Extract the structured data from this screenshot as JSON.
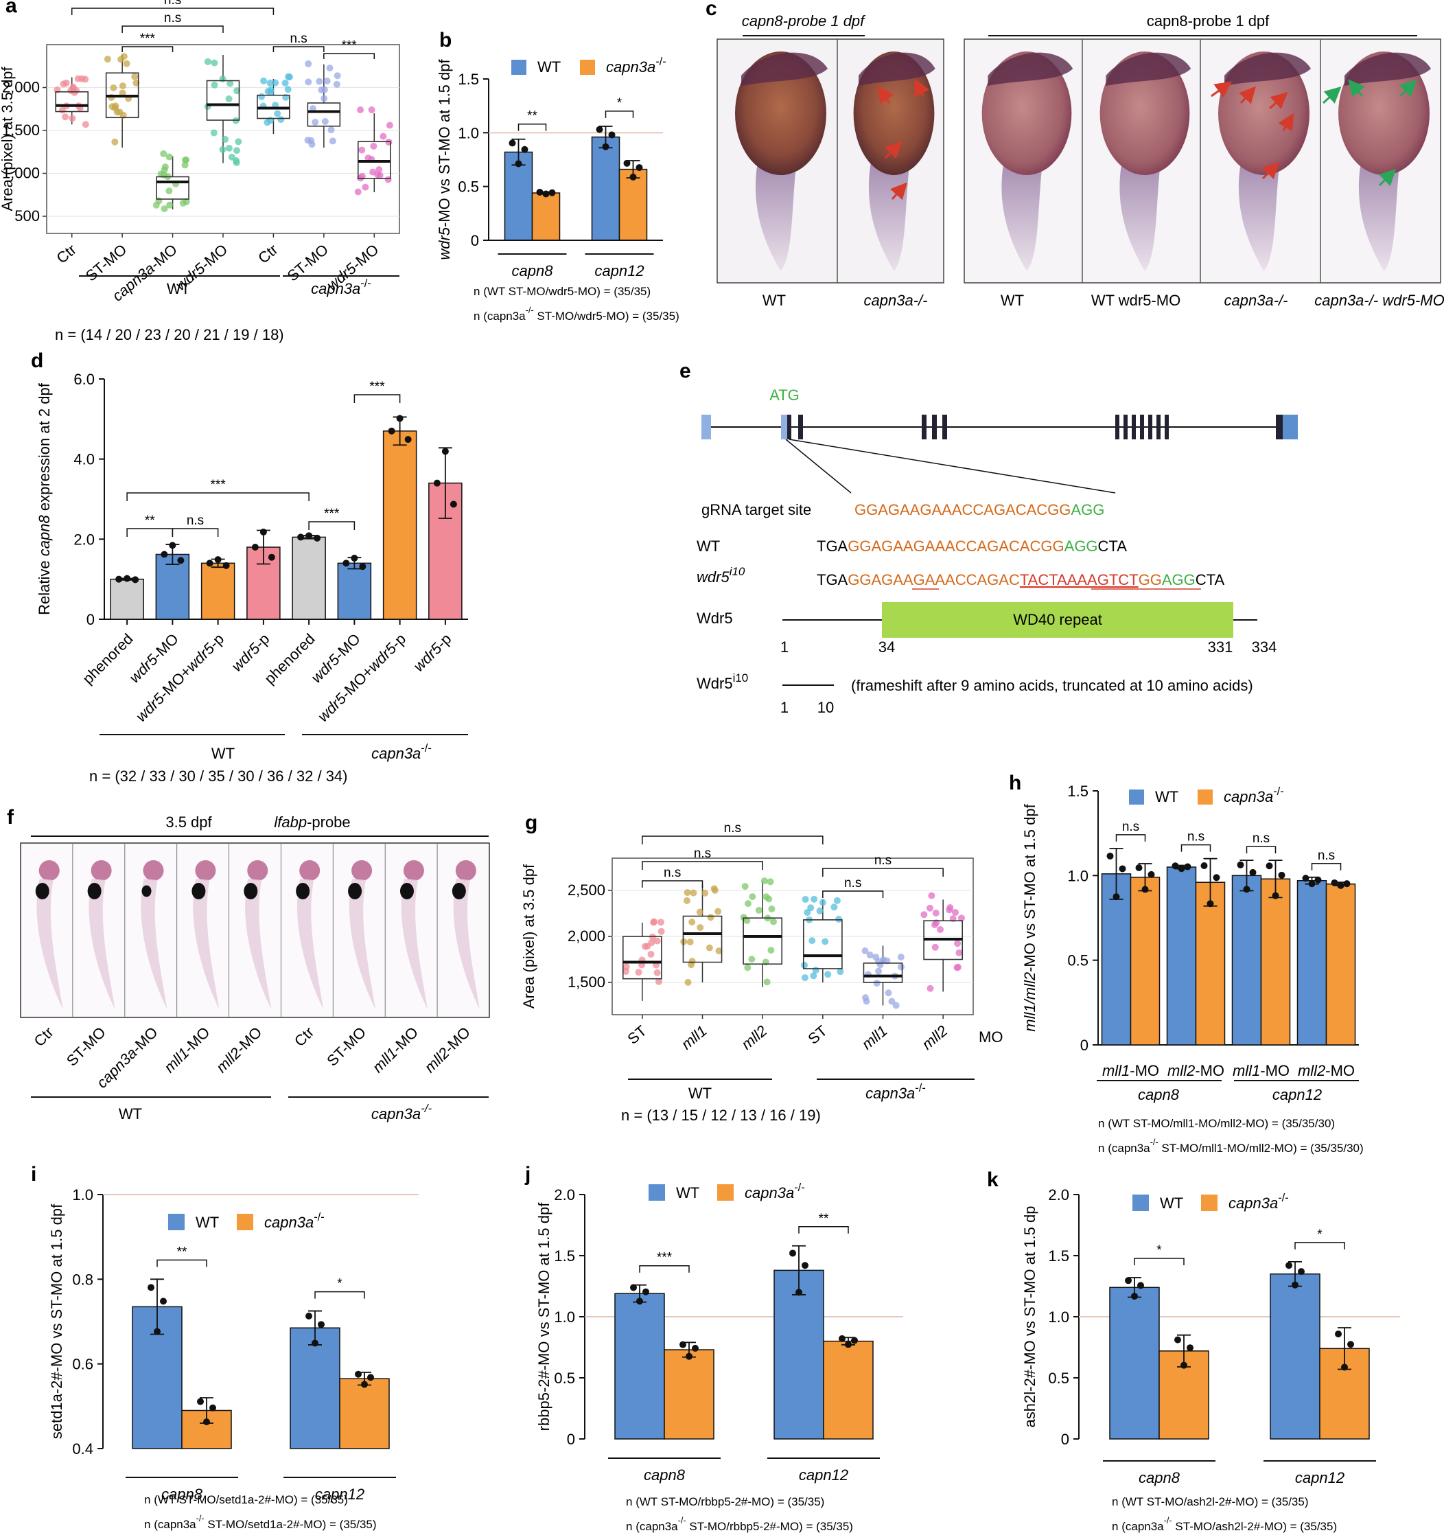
{
  "colors": {
    "wt": "#5b8fd0",
    "mut": "#f59a3b",
    "ctrl": "#d0d0d0",
    "pink": "#f08a96",
    "line": "#8c6d5a",
    "ref": "#e6c8b8",
    "red": "#d63a2a",
    "green": "#2aa65a",
    "orange": "#d4691a",
    "darkgreen": "#3cb043",
    "box": "#222233"
  },
  "panel_labels": [
    "a",
    "b",
    "c",
    "d",
    "e",
    "f",
    "g",
    "h",
    "i",
    "j",
    "k"
  ],
  "legend": {
    "wt": "WT",
    "mut": "capn3a",
    "mut_sup": "-/-"
  },
  "chart_data": [
    {
      "id": "a",
      "type": "box",
      "ylabel": "Area (pixel) at 3.5 dpf",
      "ylim": [
        300,
        2500
      ],
      "yticks": [
        500,
        1000,
        1500,
        2000
      ],
      "ytick_labels": [
        "500",
        "1,000",
        "1,500",
        "2,000"
      ],
      "categories": [
        "Ctr",
        "ST-MO",
        "capn3a-MO",
        "wdr5-MO",
        "Ctr",
        "ST-MO",
        "wdr5-MO"
      ],
      "groups": [
        "WT",
        "capn3a-/-"
      ],
      "n_label": "n = (14   /   20   /   23   /   20  / 21   /   19  /  18)",
      "boxes": [
        {
          "min": 1570,
          "q1": 1720,
          "median": 1790,
          "q3": 1950,
          "max": 2120,
          "color": "#f08a96"
        },
        {
          "min": 1300,
          "q1": 1650,
          "median": 1900,
          "q3": 2170,
          "max": 2380,
          "color": "#c7a54a"
        },
        {
          "min": 580,
          "q1": 700,
          "median": 900,
          "q3": 960,
          "max": 1200,
          "color": "#7cc86a"
        },
        {
          "min": 1120,
          "q1": 1620,
          "median": 1800,
          "q3": 2080,
          "max": 2380,
          "color": "#58c9a8"
        },
        {
          "min": 1460,
          "q1": 1640,
          "median": 1760,
          "q3": 1910,
          "max": 2100,
          "color": "#56bede"
        },
        {
          "min": 1300,
          "q1": 1550,
          "median": 1720,
          "q3": 1820,
          "max": 2270,
          "color": "#9aa8e6"
        },
        {
          "min": 780,
          "q1": 940,
          "median": 1140,
          "q3": 1370,
          "max": 1700,
          "color": "#e26fc6"
        }
      ],
      "significance": [
        "***",
        "n.s",
        "n.s",
        "n.s",
        "***"
      ]
    },
    {
      "id": "b",
      "type": "bar",
      "ylabel": "wdr5-MO vs ST-MO at 1.5 dpf",
      "ylim": [
        0,
        1.5
      ],
      "yticks": [
        0,
        0.5,
        1.0,
        1.5
      ],
      "ytick_labels": [
        "0",
        "0.5",
        "1.0",
        "1.5"
      ],
      "categories": [
        "capn8",
        "capn12"
      ],
      "series": [
        {
          "name": "WT",
          "values": [
            0.82,
            0.96
          ],
          "err": [
            0.12,
            0.1
          ]
        },
        {
          "name": "capn3a-/-",
          "values": [
            0.44,
            0.66
          ],
          "err": [
            0.01,
            0.08
          ]
        }
      ],
      "significance": [
        "**",
        "*"
      ],
      "footnotes": [
        "n (WT ST-MO/wdr5-MO) = (35/35)",
        "n (capn3a-/-  ST-MO/wdr5-MO) = (35/35)"
      ]
    },
    {
      "id": "d",
      "type": "bar",
      "ylabel": "Relative capn8 expression at 2 dpf",
      "ylim": [
        0,
        6.0
      ],
      "yticks": [
        0,
        2.0,
        4.0,
        6.0
      ],
      "ytick_labels": [
        "0",
        "2.0",
        "4.0",
        "6.0"
      ],
      "categories": [
        "phenored",
        "wdr5-MO",
        "wdr5-MO+wdr5-p",
        "wdr5-p",
        "phenored",
        "wdr5-MO",
        "wdr5-MO+wdr5-p",
        "wdr5-p"
      ],
      "values": [
        1.0,
        1.62,
        1.4,
        1.8,
        2.05,
        1.4,
        4.7,
        3.4
      ],
      "err": [
        0.02,
        0.25,
        0.1,
        0.42,
        0.04,
        0.14,
        0.35,
        0.88
      ],
      "bar_colors": [
        "#d0d0d0",
        "#5b8fd0",
        "#f59a3b",
        "#f08a96",
        "#d0d0d0",
        "#5b8fd0",
        "#f59a3b",
        "#f08a96"
      ],
      "groups": [
        "WT",
        "capn3a-/-"
      ],
      "n_label": "n = (32     /   33    /   30    /   35    /   30     /   36   /  32    /    34)",
      "significance": [
        "**",
        "n.s",
        "***",
        "***",
        "***"
      ]
    },
    {
      "id": "g",
      "type": "box",
      "ylabel": "Area (pixel) at 3.5 dpf",
      "ylim": [
        1150,
        2850
      ],
      "yticks": [
        1500,
        2000,
        2500
      ],
      "ytick_labels": [
        "1,500",
        "2,000",
        "2,500"
      ],
      "categories": [
        "ST",
        "mll1",
        "mll2",
        "ST",
        "mll1",
        "mll2"
      ],
      "suffix": "MO",
      "groups": [
        "WT",
        "capn3a-/-"
      ],
      "n_label": "n = (13     /    15       /      12       /     13     /     16       /     19)",
      "boxes": [
        {
          "min": 1300,
          "q1": 1540,
          "median": 1720,
          "q3": 2000,
          "max": 2150,
          "color": "#f08a96"
        },
        {
          "min": 1500,
          "q1": 1720,
          "median": 2030,
          "q3": 2220,
          "max": 2560,
          "color": "#c7a54a"
        },
        {
          "min": 1450,
          "q1": 1700,
          "median": 2000,
          "q3": 2200,
          "max": 2600,
          "color": "#7cc86a"
        },
        {
          "min": 1500,
          "q1": 1650,
          "median": 1790,
          "q3": 2180,
          "max": 2400,
          "color": "#56bede"
        },
        {
          "min": 1250,
          "q1": 1500,
          "median": 1570,
          "q3": 1710,
          "max": 1900,
          "color": "#9aa8e6"
        },
        {
          "min": 1400,
          "q1": 1750,
          "median": 1970,
          "q3": 2170,
          "max": 2400,
          "color": "#e26fc6"
        }
      ],
      "significance": [
        "n.s",
        "n.s",
        "n.s",
        "n.s",
        "n.s"
      ]
    },
    {
      "id": "h",
      "type": "bar",
      "ylabel": "mll1/mll2-MO vs ST-MO at 1.5 dpf",
      "ylim": [
        0,
        1.5
      ],
      "yticks": [
        0,
        0.5,
        1.0,
        1.5
      ],
      "ytick_labels": [
        "0",
        "0.5",
        "1.0",
        "1.5"
      ],
      "categories": [
        "mll1-MO",
        "mll2-MO",
        "mll1-MO",
        "mll2-MO"
      ],
      "genes": [
        "capn8",
        "capn12"
      ],
      "series": [
        {
          "name": "WT",
          "values": [
            1.01,
            1.05,
            1.0,
            0.97
          ],
          "err": [
            0.15,
            0.01,
            0.09,
            0.02
          ]
        },
        {
          "name": "capn3a-/-",
          "values": [
            0.99,
            0.96,
            0.98,
            0.95
          ],
          "err": [
            0.08,
            0.14,
            0.11,
            0.01
          ]
        }
      ],
      "significance": [
        "n.s",
        "n.s",
        "n.s",
        "n.s"
      ],
      "footnotes": [
        "n (WT ST-MO/mll1-MO/mll2-MO) = (35/35/30)",
        "n (capn3a-/-  ST-MO/mll1-MO/mll2-MO) = (35/35/30)"
      ]
    },
    {
      "id": "i",
      "type": "bar",
      "ylabel": "setd1a-2#-MO vs ST-MO at 1.5 dpf",
      "ylim": [
        0.4,
        1.0
      ],
      "yticks": [
        0.4,
        0.6,
        0.8,
        1.0
      ],
      "ytick_labels": [
        "0.4",
        "0.6",
        "0.8",
        "1.0"
      ],
      "categories": [
        "capn8",
        "capn12"
      ],
      "series": [
        {
          "name": "WT",
          "values": [
            0.735,
            0.685
          ],
          "err": [
            0.065,
            0.04
          ]
        },
        {
          "name": "capn3a-/-",
          "values": [
            0.49,
            0.565
          ],
          "err": [
            0.03,
            0.015
          ]
        }
      ],
      "significance": [
        "**",
        "*"
      ],
      "footnotes": [
        "n (WT ST-MO/setd1a-2#-MO) = (35/35)",
        "n (capn3a-/-  ST-MO/setd1a-2#-MO) = (35/35)"
      ]
    },
    {
      "id": "j",
      "type": "bar",
      "ylabel": "rbbp5-2#-MO vs ST-MO at 1.5 dpf",
      "ylim": [
        0,
        2.0
      ],
      "yticks": [
        0,
        0.5,
        1.0,
        1.5,
        2.0
      ],
      "ytick_labels": [
        "0",
        "0.5",
        "1.0",
        "1.5",
        "2.0"
      ],
      "categories": [
        "capn8",
        "capn12"
      ],
      "series": [
        {
          "name": "WT",
          "values": [
            1.19,
            1.38
          ],
          "err": [
            0.07,
            0.2
          ]
        },
        {
          "name": "capn3a-/-",
          "values": [
            0.73,
            0.8
          ],
          "err": [
            0.06,
            0.03
          ]
        }
      ],
      "significance": [
        "***",
        "**"
      ],
      "footnotes": [
        "n (WT ST-MO/rbbp5-2#-MO) = (35/35)",
        "n (capn3a-/-  ST-MO/rbbp5-2#-MO) = (35/35)"
      ]
    },
    {
      "id": "k",
      "type": "bar",
      "ylabel": "ash2l-2#-MO vs ST-MO at 1.5 dp",
      "ylim": [
        0,
        2.0
      ],
      "yticks": [
        0,
        0.5,
        1.0,
        1.5,
        2.0
      ],
      "ytick_labels": [
        "0",
        "0.5",
        "1.0",
        "1.5",
        "2.0"
      ],
      "categories": [
        "capn8",
        "capn12"
      ],
      "series": [
        {
          "name": "WT",
          "values": [
            1.24,
            1.35
          ],
          "err": [
            0.08,
            0.1
          ]
        },
        {
          "name": "capn3a-/-",
          "values": [
            0.72,
            0.74
          ],
          "err": [
            0.13,
            0.17
          ]
        }
      ],
      "significance": [
        "*",
        "*"
      ],
      "footnotes": [
        "n (WT ST-MO/ash2l-2#-MO) = (35/35)",
        "n (capn3a-/-  ST-MO/ash2l-2#-MO) = (35/35)"
      ]
    }
  ],
  "panel_c": {
    "title_left": "capn8-probe 1 dpf",
    "title_right": "capn8-probe 1 dpf",
    "labels": [
      "WT",
      "capn3a-/-",
      "WT",
      "WT wdr5-MO",
      "capn3a-/-",
      "capn3a-/- wdr5-MO"
    ]
  },
  "panel_e": {
    "atg": "ATG",
    "grna_label": "gRNA target site",
    "grna_seq": "GGAGAAGAAACCAGACACGG",
    "pam": "AGG",
    "wt_label": "WT",
    "wt_seq": [
      "TGA",
      "GGAGAAGAAACCAGACACGG",
      "AGG",
      "CTA"
    ],
    "mut_label": "wdr5",
    "mut_sup": "i10",
    "mut_seq": [
      "TGA",
      "GGAGAAGAAACCAGAC",
      "TAC",
      "TAAAAGTCT",
      "GG",
      "AGG",
      "CTA"
    ],
    "protein_label": "Wdr5",
    "domain": "WD40 repeat",
    "pos": [
      "1",
      "34",
      "331",
      "334"
    ],
    "trunc_label": "Wdr5",
    "trunc_sup": "i10",
    "trunc_pos": [
      "1",
      "10"
    ],
    "trunc_note": "(frameshift after 9 amino acids, truncated at 10 amino acids)"
  },
  "panel_f": {
    "title": "3.5 dpf",
    "probe": "lfabp-probe",
    "labels": [
      "Ctr",
      "ST-MO",
      "capn3a-MO",
      "mll1-MO",
      "mll2-MO",
      "Ctr",
      "ST-MO",
      "mll1-MO",
      "mll2-MO"
    ],
    "groups": [
      "WT",
      "capn3a-/-"
    ]
  }
}
